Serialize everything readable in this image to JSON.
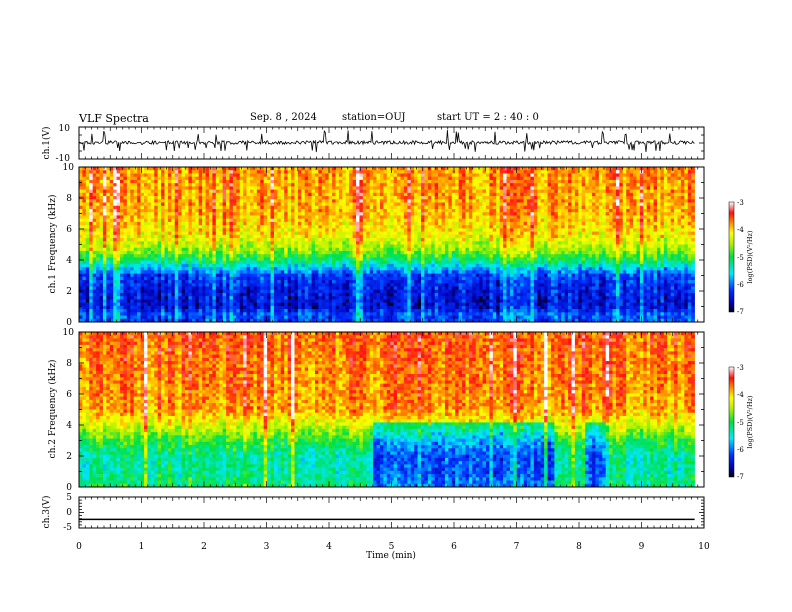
{
  "header": {
    "title": "VLF Spectra",
    "date": "Sep. 8 , 2024",
    "station": "station=OUJ",
    "start": "start UT = 2 : 40 : 0"
  },
  "chart_data": [
    {
      "type": "line",
      "panel": "ch1-waveform",
      "ylabel": "ch.1(V)",
      "ylim": [
        -10,
        10
      ],
      "yticks": [
        "10",
        "-10"
      ],
      "xlim": [
        0,
        10
      ],
      "series": [
        {
          "baseline": 0.3,
          "burst_min": -6,
          "burst_max": 8
        }
      ]
    },
    {
      "type": "heatmap",
      "panel": "ch1-spectrogram",
      "ylabel": "ch.1 Frequency (kHz)",
      "ylim": [
        0,
        10
      ],
      "yticks": [
        "0",
        "2",
        "4",
        "6",
        "8",
        "10"
      ],
      "xlim": [
        0,
        9.85
      ],
      "colorbar": {
        "label": "log(PSD)(V²/Hz)",
        "ticks": [
          "-3",
          "-4",
          "-5",
          "-6",
          "-7"
        ],
        "range": [
          -7,
          -3
        ]
      },
      "profile": [
        {
          "f": 0.0,
          "v": -6.2
        },
        {
          "f": 0.5,
          "v": -6.1
        },
        {
          "f": 1.0,
          "v": -6.5
        },
        {
          "f": 2.0,
          "v": -6.4
        },
        {
          "f": 3.0,
          "v": -6.2
        },
        {
          "f": 3.5,
          "v": -5.7
        },
        {
          "f": 4.0,
          "v": -5.1
        },
        {
          "f": 4.6,
          "v": -4.6
        },
        {
          "f": 5.4,
          "v": -4.2
        },
        {
          "f": 7.0,
          "v": -3.9
        },
        {
          "f": 10.0,
          "v": -3.8
        }
      ]
    },
    {
      "type": "heatmap",
      "panel": "ch2-spectrogram",
      "ylabel": "ch.2 Frequency (kHz)",
      "ylim": [
        0,
        10
      ],
      "yticks": [
        "0",
        "2",
        "4",
        "6",
        "8",
        "10"
      ],
      "xlim": [
        0,
        9.85
      ],
      "colorbar": {
        "label": "log(PSD)(V²/Hz)",
        "ticks": [
          "-3",
          "-4",
          "-5",
          "-6",
          "-7"
        ],
        "range": [
          -7,
          -3
        ]
      },
      "profile": [
        {
          "f": 0.0,
          "v": -5.1
        },
        {
          "f": 1.0,
          "v": -5.3
        },
        {
          "f": 2.0,
          "v": -5.3
        },
        {
          "f": 2.8,
          "v": -5.0
        },
        {
          "f": 3.5,
          "v": -4.6
        },
        {
          "f": 4.2,
          "v": -4.2
        },
        {
          "f": 5.0,
          "v": -3.8
        },
        {
          "f": 10.0,
          "v": -3.6
        }
      ],
      "quiet_intervals": [
        [
          4.7,
          7.6
        ],
        [
          8.1,
          8.5
        ]
      ]
    },
    {
      "type": "line",
      "panel": "ch3-waveform",
      "ylabel": "ch.3(V)",
      "ylim": [
        -5,
        5
      ],
      "yticks": [
        "5",
        "0",
        "-5"
      ],
      "xlabel": "Time (min)",
      "xlim": [
        0,
        10
      ],
      "xticks": [
        "0",
        "1",
        "2",
        "3",
        "4",
        "5",
        "6",
        "7",
        "8",
        "9",
        "10"
      ],
      "series": [
        {
          "x": [
            0,
            9.85
          ],
          "y": [
            -2.2,
            -2.2
          ]
        }
      ]
    }
  ]
}
